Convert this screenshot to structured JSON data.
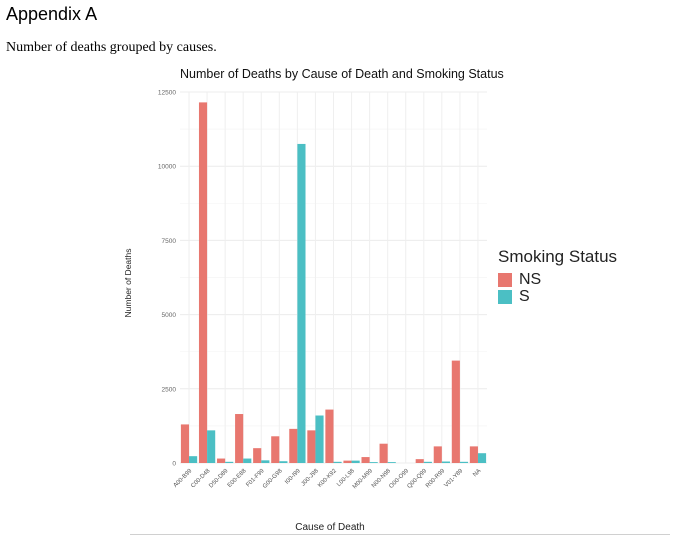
{
  "page": {
    "heading": "Appendix A",
    "caption": "Number of deaths grouped by causes."
  },
  "chart_data": {
    "type": "bar",
    "title": "Number of Deaths by Cause of Death and Smoking Status",
    "xlabel": "Cause of Death",
    "ylabel": "Number of Deaths",
    "ylim": [
      0,
      12500
    ],
    "yticks": [
      0,
      2500,
      5000,
      7500,
      10000,
      12500
    ],
    "grid": true,
    "legend_position": "right",
    "legend_title": "Smoking Status",
    "categories": [
      "A00-B99",
      "C00-D48",
      "D50-D89",
      "E00-E88",
      "F01-F99",
      "G00-G98",
      "I00-I99",
      "J00-J98",
      "K00-K92",
      "L00-L98",
      "M00-M99",
      "N00-N98",
      "O00-O99",
      "Q00-Q99",
      "R00-R99",
      "V01-Y89",
      "NA"
    ],
    "series": [
      {
        "name": "NS",
        "color": "#E8776F",
        "values": [
          1300,
          12150,
          150,
          1650,
          500,
          900,
          1150,
          1100,
          1800,
          80,
          200,
          650,
          0,
          130,
          560,
          3450,
          560
        ]
      },
      {
        "name": "S",
        "color": "#4BBFC4",
        "values": [
          230,
          1100,
          40,
          150,
          90,
          60,
          10750,
          1600,
          40,
          80,
          30,
          30,
          0,
          40,
          50,
          40,
          330
        ]
      }
    ]
  }
}
